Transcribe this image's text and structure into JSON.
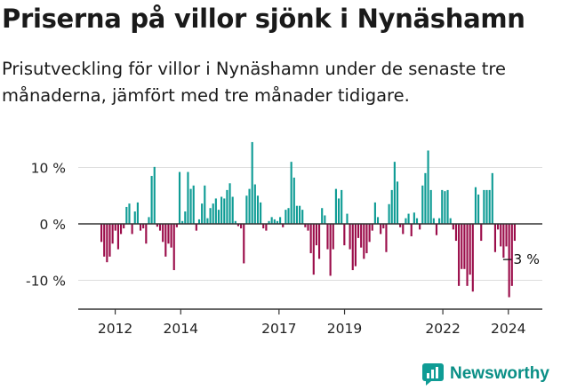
{
  "header": {
    "title": "Priserna på villor sjönk i Nynäshamn",
    "subtitle": "Prisutveckling för villor i Nynäshamn under de senaste tre månaderna, jämfört med tre månader tidigare."
  },
  "brand": {
    "name": "Newsworthy",
    "icon": "newsworthy-logo-icon"
  },
  "colors": {
    "positive": "#0f9c95",
    "negative": "#9b0d4a",
    "axis": "#333333",
    "grid": "#dddddd"
  },
  "chart_data": {
    "type": "bar",
    "title": "",
    "xlabel": "",
    "ylabel": "",
    "ylim": [
      -15,
      15
    ],
    "y_ticks": [
      {
        "value": 10,
        "label": "10 %"
      },
      {
        "value": 0,
        "label": "0 %"
      },
      {
        "value": -10,
        "label": "-10 %"
      }
    ],
    "x_ticks": [
      {
        "year": 2012,
        "label": "2012"
      },
      {
        "year": 2014,
        "label": "2014"
      },
      {
        "year": 2017,
        "label": "2017"
      },
      {
        "year": 2019,
        "label": "2019"
      },
      {
        "year": 2022,
        "label": "2022"
      },
      {
        "year": 2024,
        "label": "2024"
      }
    ],
    "x_start": 2011.55,
    "x_end": 2024.25,
    "grid": "horizontal",
    "annotation": {
      "label": "−3 %",
      "index": -1
    },
    "values": [
      -3.2,
      -5.8,
      -6.8,
      -5.8,
      -3.5,
      -1.2,
      -4.5,
      -1.8,
      -0.8,
      3,
      3.6,
      -1.8,
      2.2,
      3.8,
      -1.2,
      -0.8,
      -3.5,
      1.2,
      8.5,
      10.1,
      -0.5,
      -1.2,
      -3.2,
      -5.8,
      -3.5,
      -4.2,
      -8.2,
      -0.6,
      9.2,
      0.5,
      2.2,
      9.2,
      6.2,
      6.8,
      -1.2,
      0.8,
      3.6,
      6.8,
      1,
      2.8,
      3.6,
      4.5,
      2.5,
      4.8,
      4.5,
      6,
      7.2,
      4.8,
      0.5,
      -0.4,
      -0.8,
      -7,
      5,
      6.2,
      14.5,
      7,
      5,
      3.8,
      -0.8,
      -1.2,
      0.5,
      1.2,
      0.8,
      0.5,
      1.2,
      -0.6,
      2.5,
      2.8,
      11,
      8.2,
      3.2,
      3.2,
      2.5,
      -0.6,
      -1.2,
      -5.2,
      -9,
      -3.8,
      -6.2,
      2.8,
      1.5,
      -4.5,
      -9.2,
      -4.5,
      6.2,
      4.5,
      6,
      -3.8,
      1.8,
      -4.5,
      -8.2,
      -7.5,
      -2.5,
      -4.2,
      -6.2,
      -5.2,
      -3.2,
      -1.2,
      3.8,
      1.2,
      -1.8,
      -0.8,
      -5,
      3.5,
      6,
      11,
      7.5,
      -0.6,
      -1.8,
      1,
      1.8,
      -2.2,
      2,
      1,
      -1,
      6.8,
      9,
      13,
      6,
      1,
      -2,
      1,
      6,
      5.8,
      6,
      1,
      -1,
      -3,
      -11,
      -8,
      -8,
      -11,
      -9,
      -12,
      6.5,
      5.2,
      -3,
      6,
      6,
      6,
      9,
      -5,
      -1,
      -4,
      -6,
      -4,
      -13,
      -11,
      -3
    ]
  }
}
